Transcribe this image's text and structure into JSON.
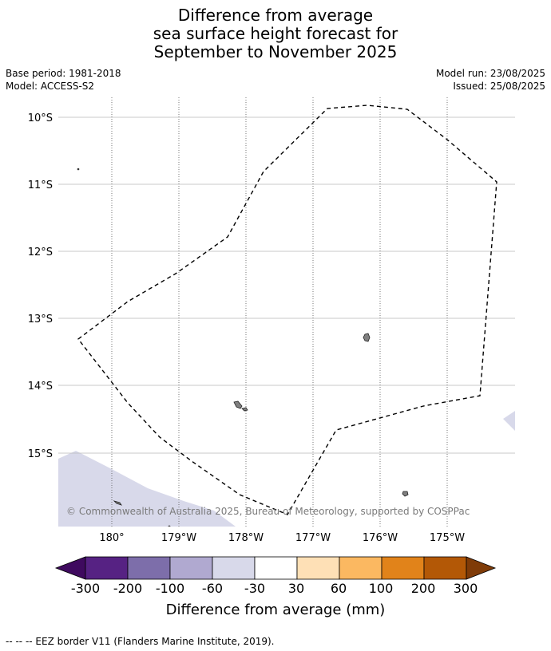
{
  "title_lines": [
    "Difference from average",
    "sea surface height forecast for",
    "September to November 2025"
  ],
  "meta": {
    "base_period": "Base period: 1981-2018",
    "model": "Model: ACCESS-S2",
    "model_run": "Model run: 23/08/2025",
    "issued": "Issued: 25/08/2025"
  },
  "map": {
    "lat_labels": [
      "10°S",
      "11°S",
      "12°S",
      "13°S",
      "14°S",
      "15°S"
    ],
    "lon_labels": [
      "180°",
      "179°W",
      "178°W",
      "177°W",
      "176°W",
      "175°W"
    ],
    "copyright": "© Commonwealth of Australia 2025, Bureau of Meteorology, supported by COSPPac",
    "anomaly_fill_color": "#d8d9ea",
    "land_color": "#808080",
    "eez_style": "dashed"
  },
  "colorbar": {
    "tick_labels": [
      "-300",
      "-200",
      "-100",
      "-60",
      "-30",
      "30",
      "60",
      "100",
      "200",
      "300"
    ],
    "colors": [
      "#3f0a5f",
      "#562283",
      "#7d6eaa",
      "#b0a9d0",
      "#d8d9ea",
      "#ffffff",
      "#fee0b6",
      "#fbb861",
      "#e1831a",
      "#b35806",
      "#7f3b08"
    ],
    "title": "Difference from average (mm)"
  },
  "footnote": "--  --  -- EEZ border V11 (Flanders Marine Institute, 2019)."
}
